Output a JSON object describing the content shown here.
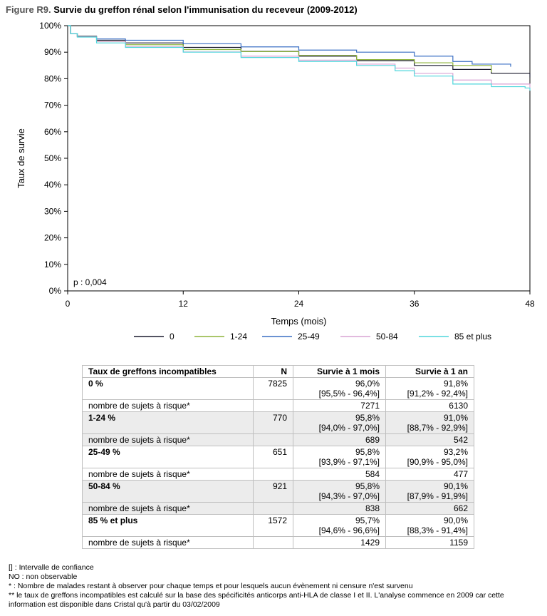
{
  "figure": {
    "label": "Figure R9.",
    "title": "Survie du greffon rénal selon l'immunisation du receveur (2009-2012)"
  },
  "chart_data": {
    "type": "line",
    "xlabel": "Temps (mois)",
    "ylabel": "Taux de survie",
    "xlim": [
      0,
      48
    ],
    "ylim": [
      0,
      100
    ],
    "xticks": [
      0,
      12,
      24,
      36,
      48
    ],
    "yticks": [
      0,
      10,
      20,
      30,
      40,
      50,
      60,
      70,
      80,
      90,
      100
    ],
    "ytick_labels": [
      "0%",
      "10%",
      "20%",
      "30%",
      "40%",
      "50%",
      "60%",
      "70%",
      "80%",
      "90%",
      "100%"
    ],
    "annotation": "p : 0,004",
    "legend_position": "bottom",
    "grid": false,
    "series": [
      {
        "name": "0",
        "color": "#1a1a2e",
        "x": [
          0,
          0.3,
          1,
          3,
          6,
          12,
          18,
          24,
          30,
          36,
          40,
          44,
          48
        ],
        "y": [
          100,
          97,
          96.0,
          94.5,
          93.5,
          91.8,
          90.3,
          88.5,
          86.8,
          85.0,
          83.5,
          82.0,
          80.5
        ]
      },
      {
        "name": "1-24",
        "color": "#8db33a",
        "x": [
          0,
          0.3,
          1,
          3,
          6,
          12,
          18,
          24,
          30,
          36,
          40,
          44
        ],
        "y": [
          100,
          97,
          95.8,
          94.0,
          92.8,
          91.0,
          90.2,
          88.8,
          87.2,
          86.0,
          85.0,
          82.5
        ]
      },
      {
        "name": "25-49",
        "color": "#3a6fc4",
        "x": [
          0,
          0.3,
          1,
          3,
          6,
          12,
          18,
          24,
          30,
          36,
          40,
          42,
          46
        ],
        "y": [
          100,
          97,
          95.8,
          95.0,
          94.5,
          93.2,
          92.0,
          90.8,
          90.0,
          88.5,
          86.5,
          85.5,
          84.5
        ]
      },
      {
        "name": "50-84",
        "color": "#d9a3d4",
        "x": [
          0,
          0.3,
          1,
          3,
          6,
          12,
          18,
          24,
          30,
          34,
          36,
          40,
          44,
          48
        ],
        "y": [
          100,
          97,
          95.8,
          94.0,
          92.0,
          90.1,
          88.5,
          87.0,
          85.5,
          84.0,
          82.0,
          79.5,
          78.0,
          76.5
        ]
      },
      {
        "name": "85 et plus",
        "color": "#4fd6dc",
        "x": [
          0,
          0.3,
          1,
          3,
          6,
          12,
          18,
          24,
          30,
          34,
          36,
          40,
          44,
          47.5,
          48
        ],
        "y": [
          100,
          97,
          95.7,
          93.5,
          91.8,
          90.0,
          88.0,
          86.5,
          85.0,
          83.0,
          81.0,
          78.0,
          77.0,
          76.5,
          75.5
        ]
      }
    ]
  },
  "table": {
    "headers": [
      "Taux de greffons incompatibles",
      "N",
      "Survie à 1 mois",
      "Survie à 1 an"
    ],
    "groups": [
      {
        "label": "0 %",
        "n": "7825",
        "m1": "96,0%",
        "m1_ci": "[95,5% - 96,4%]",
        "y1": "91,8%",
        "y1_ci": "[91,2% - 92,4%]",
        "risk_label": "nombre de sujets à risque*",
        "risk_m1": "7271",
        "risk_y1": "6130"
      },
      {
        "label": "1-24 %",
        "n": "770",
        "m1": "95,8%",
        "m1_ci": "[94,0% - 97,0%]",
        "y1": "91,0%",
        "y1_ci": "[88,7% - 92,9%]",
        "risk_label": "nombre de sujets à risque*",
        "risk_m1": "689",
        "risk_y1": "542"
      },
      {
        "label": "25-49 %",
        "n": "651",
        "m1": "95,8%",
        "m1_ci": "[93,9% - 97,1%]",
        "y1": "93,2%",
        "y1_ci": "[90,9% - 95,0%]",
        "risk_label": "nombre de sujets à risque*",
        "risk_m1": "584",
        "risk_y1": "477"
      },
      {
        "label": "50-84 %",
        "n": "921",
        "m1": "95,8%",
        "m1_ci": "[94,3% - 97,0%]",
        "y1": "90,1%",
        "y1_ci": "[87,9% - 91,9%]",
        "risk_label": "nombre de sujets à risque*",
        "risk_m1": "838",
        "risk_y1": "662"
      },
      {
        "label": "85 % et plus",
        "n": "1572",
        "m1": "95,7%",
        "m1_ci": "[94,6% - 96,6%]",
        "y1": "90,0%",
        "y1_ci": "[88,3% - 91,4%]",
        "risk_label": "nombre de sujets à risque*",
        "risk_m1": "1429",
        "risk_y1": "1159"
      }
    ]
  },
  "notes": [
    "[] : Intervalle de confiance",
    "NO : non observable",
    "* : Nombre de malades restant à observer pour chaque temps et pour lesquels aucun évènement ni censure n'est survenu",
    " ** le taux de greffons incompatibles est calculé sur la base des spécificités anticorps anti-HLA de classe I et II. L'analyse commence en 2009 car cette information est disponible dans Cristal qu'à partir du 03/02/2009"
  ]
}
